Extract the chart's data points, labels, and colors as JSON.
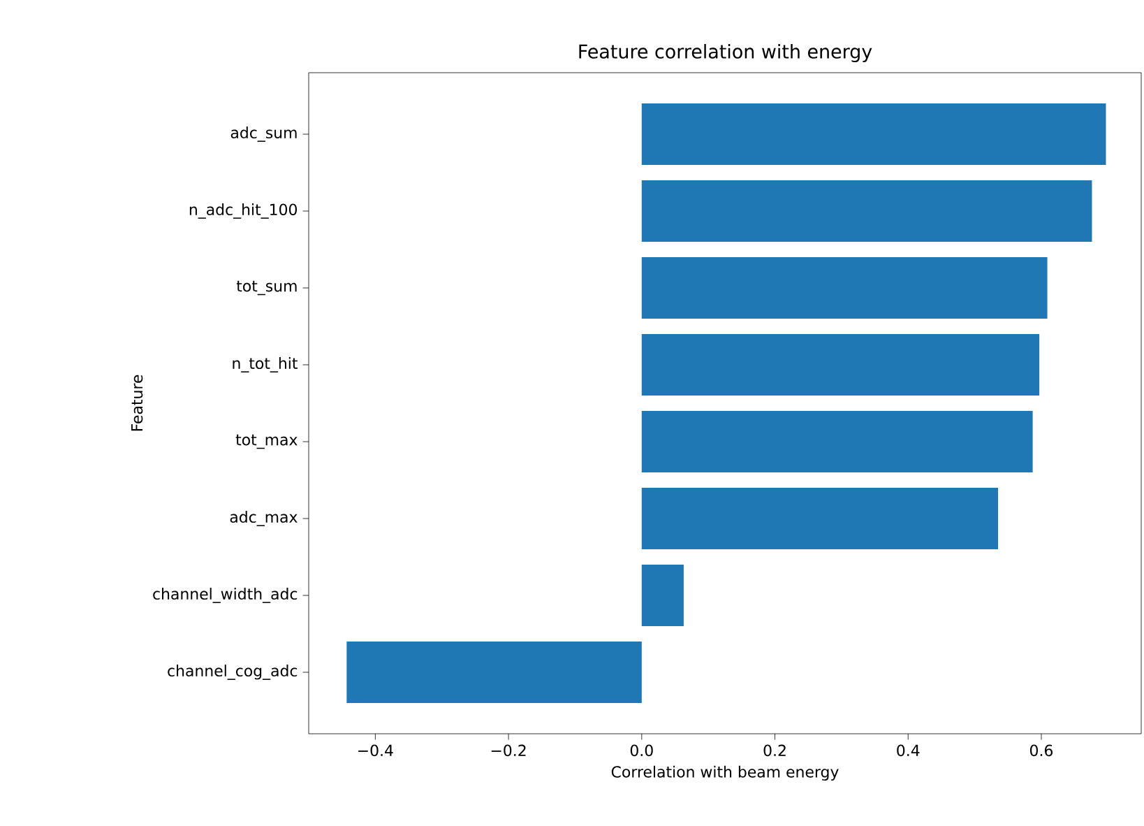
{
  "chart_data": {
    "type": "bar",
    "orientation": "horizontal",
    "title": "Feature correlation with energy",
    "xlabel": "Correlation with beam energy",
    "ylabel": "Feature",
    "categories": [
      "adc_sum",
      "n_adc_hit_100",
      "tot_sum",
      "n_tot_hit",
      "tot_max",
      "adc_max",
      "channel_width_adc",
      "channel_cog_adc"
    ],
    "values": [
      0.697,
      0.676,
      0.609,
      0.597,
      0.587,
      0.535,
      0.063,
      -0.443
    ],
    "color": "#1f77b4",
    "xlim": [
      -0.5,
      0.75
    ],
    "xticks": [
      {
        "value": -0.4,
        "label": "−0.4"
      },
      {
        "value": -0.2,
        "label": "−0.2"
      },
      {
        "value": 0.0,
        "label": "0.0"
      },
      {
        "value": 0.2,
        "label": "0.2"
      },
      {
        "value": 0.4,
        "label": "0.4"
      },
      {
        "value": 0.6,
        "label": "0.6"
      }
    ],
    "grid": false
  }
}
